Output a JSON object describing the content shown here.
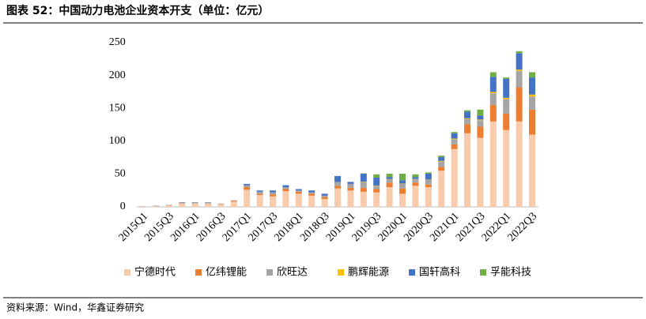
{
  "chart_data": {
    "type": "bar",
    "stacked": true,
    "title": "图表 52：中国动力电池企业资本开支（单位：亿元）",
    "source": "资料来源：Wind，华鑫证券研究",
    "categories": [
      "2015Q1",
      null,
      "2015Q3",
      null,
      "2016Q1",
      null,
      "2016Q3",
      null,
      "2017Q1",
      null,
      "2017Q3",
      null,
      "2018Q1",
      null,
      "2018Q3",
      null,
      "2019Q1",
      null,
      "2019Q3",
      null,
      "2020Q1",
      null,
      "2020Q3",
      null,
      "2021Q1",
      null,
      "2021Q3",
      null,
      "2022Q1",
      null,
      "2022Q3"
    ],
    "series": [
      {
        "name": "宁德时代",
        "color": "#f8cbad",
        "values": [
          0.5,
          1,
          2,
          5,
          5,
          5,
          4,
          8,
          26,
          18,
          16,
          24,
          20,
          17,
          12,
          28,
          25,
          23,
          22,
          30,
          20,
          32,
          30,
          55,
          88,
          112,
          105,
          130,
          117,
          130,
          110
        ]
      },
      {
        "name": "亿纬锂能",
        "color": "#ed7d31",
        "values": [
          0.3,
          0.5,
          0.5,
          0.5,
          0.5,
          0.5,
          0.3,
          1,
          4,
          2,
          3,
          3,
          3,
          3,
          3,
          4,
          4,
          6,
          5,
          7,
          8,
          5,
          4,
          6,
          7,
          14,
          17,
          25,
          25,
          52,
          38
        ]
      },
      {
        "name": "欣旺达",
        "color": "#a5a5a5",
        "values": [
          0.2,
          0.3,
          0.3,
          1,
          1,
          1,
          0.4,
          1,
          3,
          3,
          3,
          3,
          2,
          2,
          2,
          6,
          6,
          9,
          5,
          5,
          7,
          5,
          7,
          8,
          8,
          8,
          10,
          18,
          22,
          25,
          20
        ]
      },
      {
        "name": "鹏辉能源",
        "color": "#ffc000",
        "values": [
          0,
          0,
          0,
          0,
          0,
          0,
          0,
          0,
          0,
          0,
          0,
          0,
          0,
          0,
          0,
          0,
          0,
          0.5,
          0.5,
          0.5,
          0.5,
          0.5,
          0.5,
          1,
          1,
          1,
          1,
          2,
          2,
          2,
          3
        ]
      },
      {
        "name": "国轩高科",
        "color": "#4472c4",
        "values": [
          0,
          0.2,
          0.2,
          0.5,
          0.5,
          0.5,
          0.3,
          0,
          2,
          2,
          3,
          3,
          2,
          3,
          3,
          9,
          3,
          12,
          12,
          3,
          5,
          3,
          9,
          6,
          8,
          10,
          6,
          23,
          29,
          25,
          26
        ]
      },
      {
        "name": "孚能科技",
        "color": "#70ad47",
        "values": [
          0,
          0,
          0,
          0,
          0,
          0,
          0,
          0,
          0,
          0,
          0,
          0,
          0,
          0,
          0,
          0,
          0,
          0.5,
          5,
          5,
          10,
          4,
          2,
          2,
          2,
          2,
          9,
          7,
          2,
          3,
          8
        ]
      }
    ],
    "ylim": [
      0,
      250
    ],
    "yticks": [
      0,
      50,
      100,
      150,
      200,
      250
    ],
    "grid": false,
    "legend": "bottom"
  }
}
